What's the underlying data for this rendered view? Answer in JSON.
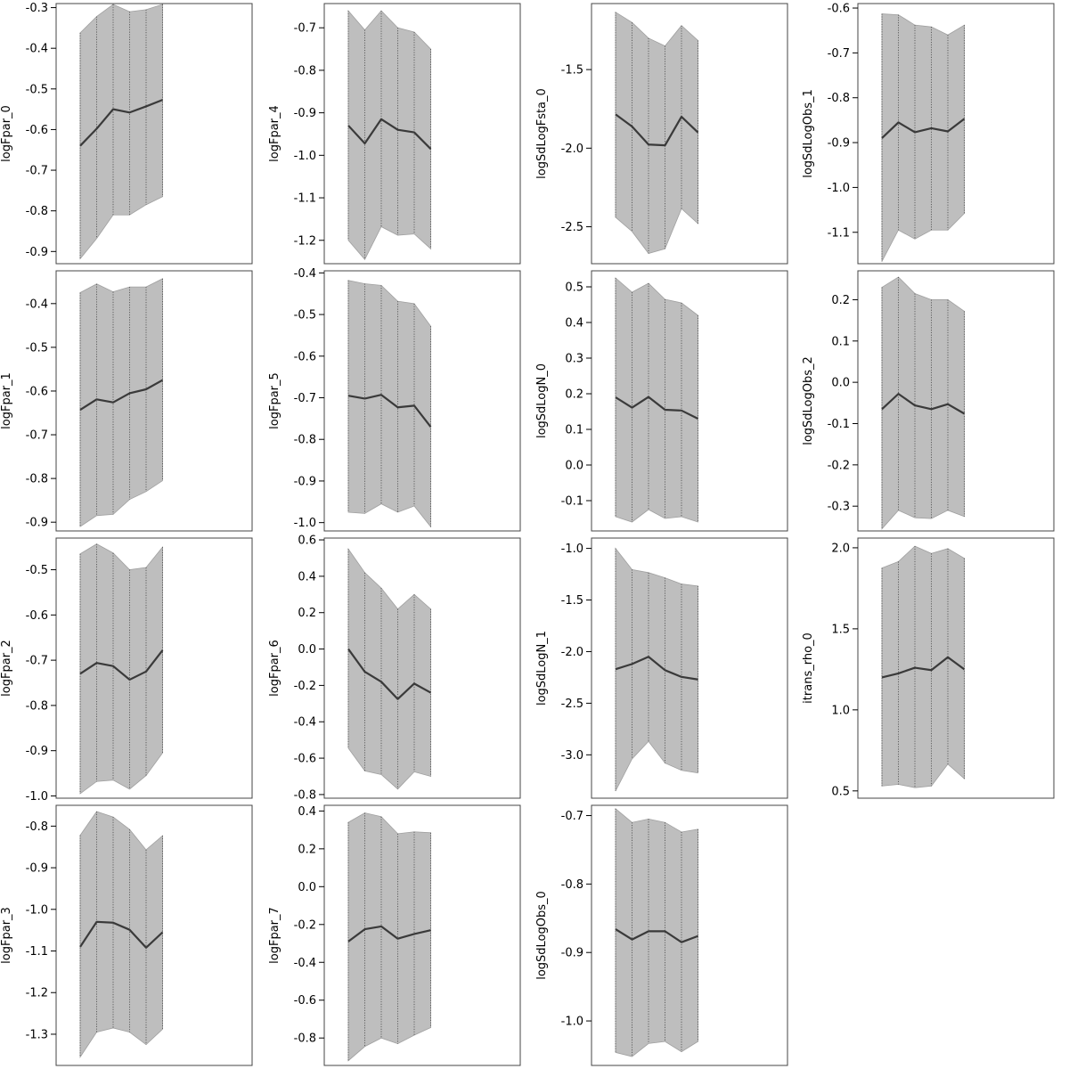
{
  "style": {
    "band_fill": "#bebebe",
    "band_edge": "#a0a0a0",
    "dotted_line": "#555555",
    "median_line": "#3a3a3a",
    "frame": "#444444"
  },
  "chart_data": [
    {
      "type": "area",
      "ylabel": "logFpar_0",
      "ylim": [
        -0.93,
        -0.29
      ],
      "yticks": [
        "-0.3",
        "-0.4",
        "-0.5",
        "-0.6",
        "-0.7",
        "-0.8",
        "-0.9"
      ],
      "x": [
        1,
        2,
        3,
        4,
        5,
        6
      ],
      "median": [
        -0.64,
        -0.598,
        -0.55,
        -0.558,
        -0.543,
        -0.527
      ],
      "lower": [
        -0.918,
        -0.868,
        -0.81,
        -0.81,
        -0.785,
        -0.765
      ],
      "upper": [
        -0.362,
        -0.322,
        -0.292,
        -0.31,
        -0.305,
        -0.292
      ]
    },
    {
      "type": "area",
      "ylabel": "logFpar_4",
      "ylim": [
        -1.255,
        -0.643
      ],
      "yticks": [
        "-0.7",
        "-0.8",
        "-0.9",
        "-1.0",
        "-1.1",
        "-1.2"
      ],
      "x": [
        1,
        2,
        3,
        4,
        5,
        6
      ],
      "median": [
        -0.93,
        -0.972,
        -0.915,
        -0.94,
        -0.946,
        -0.985
      ],
      "lower": [
        -1.2,
        -1.245,
        -1.168,
        -1.188,
        -1.185,
        -1.22
      ],
      "upper": [
        -0.66,
        -0.705,
        -0.66,
        -0.7,
        -0.71,
        -0.75
      ]
    },
    {
      "type": "area",
      "ylabel": "logSdLogFsta_0",
      "ylim": [
        -2.735,
        -1.08
      ],
      "yticks": [
        "-1.5",
        "-2.0",
        "-2.5"
      ],
      "x": [
        1,
        2,
        3,
        4,
        5,
        6
      ],
      "median": [
        -1.785,
        -1.862,
        -1.977,
        -1.982,
        -1.8,
        -1.9
      ],
      "lower": [
        -2.44,
        -2.53,
        -2.67,
        -2.64,
        -2.385,
        -2.48
      ],
      "upper": [
        -1.135,
        -1.2,
        -1.3,
        -1.35,
        -1.22,
        -1.315
      ]
    },
    {
      "type": "area",
      "ylabel": "logSdLogObs_1",
      "ylim": [
        -1.17,
        -0.59
      ],
      "yticks": [
        "-0.6",
        "-0.7",
        "-0.8",
        "-0.9",
        "-1.0",
        "-1.1"
      ],
      "x": [
        1,
        2,
        3,
        4,
        5,
        6
      ],
      "median": [
        -0.89,
        -0.855,
        -0.877,
        -0.868,
        -0.875,
        -0.847
      ],
      "lower": [
        -1.165,
        -1.095,
        -1.115,
        -1.095,
        -1.095,
        -1.058
      ],
      "upper": [
        -0.613,
        -0.615,
        -0.638,
        -0.642,
        -0.66,
        -0.638
      ]
    },
    {
      "type": "area",
      "ylabel": "logFpar_1",
      "ylim": [
        -0.92,
        -0.325
      ],
      "yticks": [
        "-0.4",
        "-0.5",
        "-0.6",
        "-0.7",
        "-0.8",
        "-0.9"
      ],
      "x": [
        1,
        2,
        3,
        4,
        5,
        6
      ],
      "median": [
        -0.643,
        -0.619,
        -0.626,
        -0.605,
        -0.596,
        -0.575
      ],
      "lower": [
        -0.91,
        -0.885,
        -0.882,
        -0.848,
        -0.83,
        -0.805
      ],
      "upper": [
        -0.375,
        -0.355,
        -0.373,
        -0.362,
        -0.362,
        -0.343
      ]
    },
    {
      "type": "area",
      "ylabel": "logFpar_5",
      "ylim": [
        -1.02,
        -0.395
      ],
      "yticks": [
        "-0.4",
        "-0.5",
        "-0.6",
        "-0.7",
        "-0.8",
        "-0.9",
        "-1.0"
      ],
      "x": [
        1,
        2,
        3,
        4,
        5,
        6
      ],
      "median": [
        -0.695,
        -0.702,
        -0.693,
        -0.723,
        -0.719,
        -0.77
      ],
      "lower": [
        -0.975,
        -0.978,
        -0.955,
        -0.975,
        -0.96,
        -1.01
      ],
      "upper": [
        -0.418,
        -0.426,
        -0.43,
        -0.468,
        -0.474,
        -0.528
      ]
    },
    {
      "type": "area",
      "ylabel": "logSdLogN_0",
      "ylim": [
        -0.185,
        0.545
      ],
      "yticks": [
        "0.5",
        "0.4",
        "0.3",
        "0.2",
        "0.1",
        "0.0",
        "-0.1"
      ],
      "x": [
        1,
        2,
        3,
        4,
        5,
        6
      ],
      "median": [
        0.19,
        0.161,
        0.191,
        0.155,
        0.153,
        0.13
      ],
      "lower": [
        -0.145,
        -0.16,
        -0.125,
        -0.15,
        -0.145,
        -0.16
      ],
      "upper": [
        0.525,
        0.485,
        0.51,
        0.465,
        0.455,
        0.42
      ]
    },
    {
      "type": "area",
      "ylabel": "logSdLogObs_2",
      "ylim": [
        -0.36,
        0.27
      ],
      "yticks": [
        "0.2",
        "0.1",
        "0.0",
        "-0.1",
        "-0.2",
        "-0.3"
      ],
      "x": [
        1,
        2,
        3,
        4,
        5,
        6
      ],
      "median": [
        -0.065,
        -0.028,
        -0.056,
        -0.065,
        -0.053,
        -0.076
      ],
      "lower": [
        -0.355,
        -0.31,
        -0.328,
        -0.33,
        -0.31,
        -0.325
      ],
      "upper": [
        0.23,
        0.255,
        0.215,
        0.2,
        0.2,
        0.172
      ]
    },
    {
      "type": "area",
      "ylabel": "logFpar_2",
      "ylim": [
        -1.005,
        -0.43
      ],
      "yticks": [
        "-0.5",
        "-0.6",
        "-0.7",
        "-0.8",
        "-0.9",
        "-1.0"
      ],
      "x": [
        1,
        2,
        3,
        4,
        5,
        6
      ],
      "median": [
        -0.73,
        -0.706,
        -0.713,
        -0.743,
        -0.725,
        -0.678
      ],
      "lower": [
        -0.995,
        -0.968,
        -0.965,
        -0.985,
        -0.955,
        -0.905
      ],
      "upper": [
        -0.465,
        -0.443,
        -0.463,
        -0.5,
        -0.495,
        -0.45
      ]
    },
    {
      "type": "area",
      "ylabel": "logFpar_6",
      "ylim": [
        -0.82,
        0.61
      ],
      "yticks": [
        "0.6",
        "0.4",
        "0.2",
        "0.0",
        "-0.2",
        "-0.4",
        "-0.6",
        "-0.8"
      ],
      "x": [
        1,
        2,
        3,
        4,
        5,
        6
      ],
      "median": [
        0.0,
        -0.125,
        -0.18,
        -0.275,
        -0.19,
        -0.24
      ],
      "lower": [
        -0.545,
        -0.67,
        -0.69,
        -0.77,
        -0.675,
        -0.7
      ],
      "upper": [
        0.55,
        0.42,
        0.335,
        0.22,
        0.3,
        0.22
      ]
    },
    {
      "type": "area",
      "ylabel": "logSdLogN_1",
      "ylim": [
        -3.42,
        -0.9
      ],
      "yticks": [
        "-1.0",
        "-1.5",
        "-2.0",
        "-2.5",
        "-3.0"
      ],
      "x": [
        1,
        2,
        3,
        4,
        5,
        6
      ],
      "median": [
        -2.17,
        -2.12,
        -2.05,
        -2.18,
        -2.245,
        -2.27
      ],
      "lower": [
        -3.35,
        -3.04,
        -2.87,
        -3.08,
        -3.15,
        -3.175
      ],
      "upper": [
        -1.0,
        -1.205,
        -1.235,
        -1.285,
        -1.345,
        -1.365
      ]
    },
    {
      "type": "area",
      "ylabel": "itrans_rho_0",
      "ylim": [
        0.455,
        2.06
      ],
      "yticks": [
        "2.0",
        "1.5",
        "1.0",
        "0.5"
      ],
      "x": [
        1,
        2,
        3,
        4,
        5,
        6
      ],
      "median": [
        1.2,
        1.225,
        1.26,
        1.245,
        1.325,
        1.25
      ],
      "lower": [
        0.53,
        0.54,
        0.52,
        0.53,
        0.665,
        0.575
      ],
      "upper": [
        1.875,
        1.915,
        2.01,
        1.965,
        1.995,
        1.935
      ]
    },
    {
      "type": "area",
      "ylabel": "logFpar_3",
      "ylim": [
        -1.375,
        -0.75
      ],
      "yticks": [
        "-0.8",
        "-0.9",
        "-1.0",
        "-1.1",
        "-1.2",
        "-1.3"
      ],
      "x": [
        1,
        2,
        3,
        4,
        5,
        6
      ],
      "median": [
        -1.09,
        -1.03,
        -1.032,
        -1.049,
        -1.092,
        -1.055
      ],
      "lower": [
        -1.355,
        -1.295,
        -1.285,
        -1.295,
        -1.325,
        -1.288
      ],
      "upper": [
        -0.822,
        -0.765,
        -0.778,
        -0.808,
        -0.857,
        -0.823
      ]
    },
    {
      "type": "area",
      "ylabel": "logFpar_7",
      "ylim": [
        -0.945,
        0.43
      ],
      "yticks": [
        "0.4",
        "0.2",
        "0.0",
        "-0.2",
        "-0.4",
        "-0.6",
        "-0.8"
      ],
      "x": [
        1,
        2,
        3,
        4,
        5,
        6
      ],
      "median": [
        -0.29,
        -0.225,
        -0.21,
        -0.275,
        -0.25,
        -0.23
      ],
      "lower": [
        -0.92,
        -0.845,
        -0.8,
        -0.83,
        -0.785,
        -0.745
      ],
      "upper": [
        0.34,
        0.39,
        0.37,
        0.28,
        0.29,
        0.285
      ]
    },
    {
      "type": "area",
      "ylabel": "logSdLogObs_0",
      "ylim": [
        -1.065,
        -0.685
      ],
      "yticks": [
        "-0.7",
        "-0.8",
        "-0.9",
        "-1.0"
      ],
      "x": [
        1,
        2,
        3,
        4,
        5,
        6
      ],
      "median": [
        -0.866,
        -0.881,
        -0.869,
        -0.869,
        -0.885,
        -0.876
      ],
      "lower": [
        -1.046,
        -1.052,
        -1.033,
        -1.03,
        -1.045,
        -1.03
      ],
      "upper": [
        -0.69,
        -0.71,
        -0.705,
        -0.71,
        -0.724,
        -0.72
      ]
    }
  ]
}
